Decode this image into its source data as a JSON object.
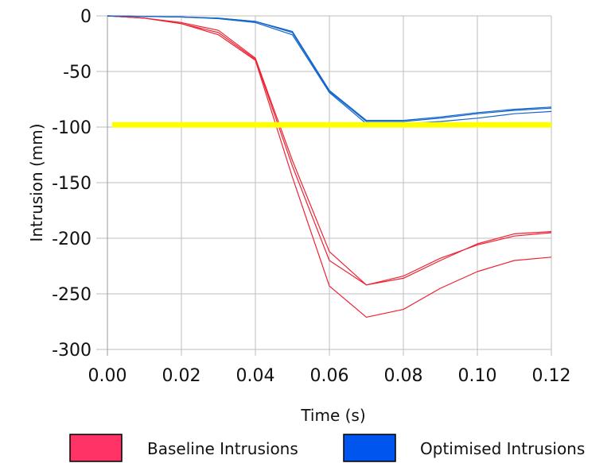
{
  "chart_data": {
    "type": "line",
    "xlabel": "Time (s)",
    "ylabel": "Intrusion (mm)",
    "xlim": [
      0.0,
      0.12
    ],
    "ylim": [
      -300,
      0
    ],
    "x_ticks": [
      {
        "value": 0.0,
        "label": "0.00"
      },
      {
        "value": 0.02,
        "label": "0.02"
      },
      {
        "value": 0.04,
        "label": "0.04"
      },
      {
        "value": 0.06,
        "label": "0.06"
      },
      {
        "value": 0.08,
        "label": "0.08"
      },
      {
        "value": 0.1,
        "label": "0.10"
      },
      {
        "value": 0.12,
        "label": "0.12"
      }
    ],
    "y_ticks": [
      {
        "value": 0,
        "label": "0"
      },
      {
        "value": -50,
        "label": "-50"
      },
      {
        "value": -100,
        "label": "-100"
      },
      {
        "value": -150,
        "label": "-150"
      },
      {
        "value": -200,
        "label": "-200"
      },
      {
        "value": -250,
        "label": "-250"
      },
      {
        "value": -300,
        "label": "-300"
      }
    ],
    "grid": true,
    "legend": "bottom",
    "x": [
      0.0,
      0.01,
      0.02,
      0.03,
      0.04,
      0.05,
      0.06,
      0.07,
      0.08,
      0.09,
      0.1,
      0.11,
      0.12
    ],
    "groups": [
      {
        "legend_label": "Baseline Intrusions",
        "color": "#ff3366",
        "line_color": "#ee2233",
        "lines": [
          [
            0,
            -2,
            -6,
            -13,
            -38,
            -130,
            -212,
            -242,
            -236,
            -220,
            -205,
            -196,
            -194
          ],
          [
            0,
            -2,
            -7,
            -15,
            -39,
            -135,
            -220,
            -242,
            -234,
            -218,
            -206,
            -198,
            -195
          ],
          [
            0,
            -2,
            -7,
            -17,
            -40,
            -145,
            -243,
            -271,
            -264,
            -245,
            -230,
            -220,
            -217
          ]
        ]
      },
      {
        "legend_label": "Optimised Intrusions",
        "color": "#0055ee",
        "line_color": "#1166cc",
        "lines": [
          [
            0,
            -0.5,
            -1,
            -2,
            -5,
            -14,
            -67,
            -94,
            -94,
            -91,
            -87,
            -84,
            -82
          ],
          [
            0,
            -0.5,
            -1,
            -2,
            -5,
            -15,
            -68,
            -95,
            -95,
            -92,
            -88,
            -85,
            -83
          ],
          [
            0,
            -0.5,
            -1,
            -2.5,
            -6,
            -17,
            -69,
            -97,
            -97,
            -95,
            -92,
            -88,
            -86
          ]
        ]
      }
    ],
    "reference_line": {
      "y": -98,
      "color": "#ffff00"
    }
  }
}
